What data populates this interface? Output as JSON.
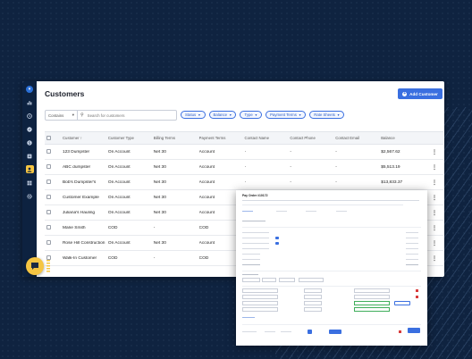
{
  "page": {
    "title": "Customers",
    "add_button": "Add Customer"
  },
  "search": {
    "mode": "Contains",
    "placeholder": "Search for customers"
  },
  "filters": [
    "Status",
    "Balance",
    "Type",
    "Payment Terms",
    "Rate Sheets"
  ],
  "table": {
    "headers": [
      "Customer",
      "Customer Type",
      "Billing Terms",
      "Payment Terms",
      "Contact Name",
      "Contact Phone",
      "Contact Email",
      "Balance"
    ],
    "rows": [
      [
        "123 Dumpster",
        "On Account",
        "Net 30",
        "Account",
        "-",
        "-",
        "-",
        "$2,567.62"
      ],
      [
        "ABC dumpster",
        "On Account",
        "Net 30",
        "Account",
        "-",
        "-",
        "-",
        "$5,513.19"
      ],
      [
        "Bob's Dumpster's",
        "On Account",
        "Net 30",
        "Account",
        "-",
        "-",
        "-",
        "$13,833.37"
      ],
      [
        "Customer Example",
        "On Account",
        "Net 30",
        "Account",
        "-",
        "-",
        "",
        ""
      ],
      [
        "Juliana's Hauling",
        "On Account",
        "Net 30",
        "Account",
        "-",
        "-",
        "",
        ""
      ],
      [
        "Marie Smith",
        "COD",
        "-",
        "COD",
        "",
        "",
        "",
        ""
      ],
      [
        "Rose Hill Construction",
        "On Account",
        "Net 30",
        "Account",
        "",
        "",
        "",
        ""
      ],
      [
        "Walk-In Customer",
        "COD",
        "-",
        "COD",
        "",
        "",
        "",
        ""
      ]
    ]
  },
  "overlay": {
    "title": "Pay Order #10172"
  },
  "colors": {
    "sidebar": "#0d2240",
    "accent": "#3a6fe0",
    "active": "#f5c542",
    "background": "#0f2340"
  },
  "icons": {
    "sidebar": [
      "logo-icon",
      "chart-icon",
      "history-icon",
      "compass-icon",
      "dollar-icon",
      "invoice-icon",
      "user-icon",
      "grid-icon",
      "settings-icon"
    ]
  }
}
